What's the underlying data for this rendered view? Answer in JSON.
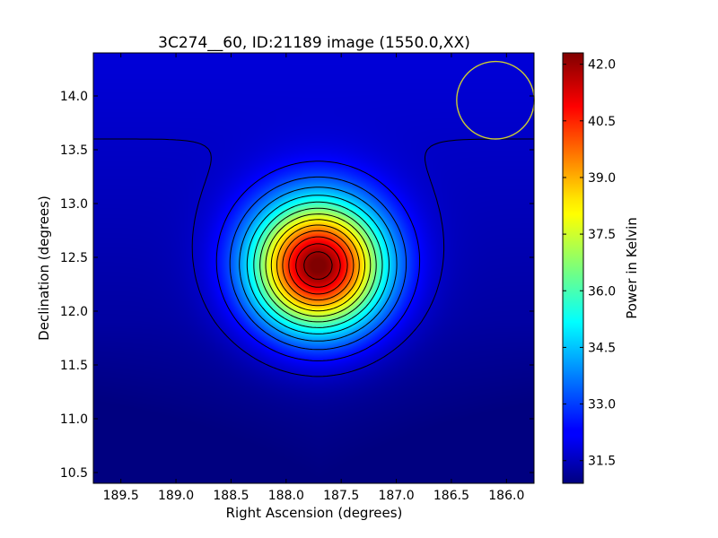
{
  "chart_data": {
    "type": "heatmap",
    "title": "3C274__60, ID:21189 image (1550.0,XX)",
    "xlabel": "Right Ascension (degrees)",
    "ylabel": "Declination (degrees)",
    "colorbar_label": "Power in Kelvin",
    "xlim": [
      189.75,
      185.75
    ],
    "ylim": [
      10.4,
      14.4
    ],
    "x_ticks": [
      189.5,
      189.0,
      188.5,
      188.0,
      187.5,
      187.0,
      186.5,
      186.0
    ],
    "x_tick_labels": [
      "189.5",
      "189.0",
      "188.5",
      "188.0",
      "187.5",
      "187.0",
      "186.5",
      "186.0"
    ],
    "y_ticks": [
      10.5,
      11.0,
      11.5,
      12.0,
      12.5,
      13.0,
      13.5,
      14.0
    ],
    "y_tick_labels": [
      "10.5",
      "11.0",
      "11.5",
      "12.0",
      "12.5",
      "13.0",
      "13.5",
      "14.0"
    ],
    "colorbar_range": [
      30.9,
      42.3
    ],
    "colorbar_ticks": [
      31.5,
      33.0,
      34.5,
      36.0,
      37.5,
      39.0,
      40.5,
      42.0
    ],
    "colorbar_tick_labels": [
      "31.5",
      "33.0",
      "34.5",
      "36.0",
      "37.5",
      "39.0",
      "40.5",
      "42.0"
    ],
    "colormap": "jet",
    "peak": {
      "ra": 187.71,
      "dec": 12.42,
      "value": 42.2
    },
    "background_value": 31.2,
    "source_sigma_ra": 0.42,
    "source_sigma_dec": 0.42,
    "contour_levels": [
      31.7,
      32.4,
      33.2,
      34.0,
      34.8,
      35.6,
      36.4,
      37.2,
      38.0,
      38.8,
      39.6,
      40.4,
      41.2,
      41.9
    ],
    "beam": {
      "ra": 186.1,
      "dec": 13.96,
      "radius_deg": 0.36,
      "color": "#cccc33"
    }
  }
}
